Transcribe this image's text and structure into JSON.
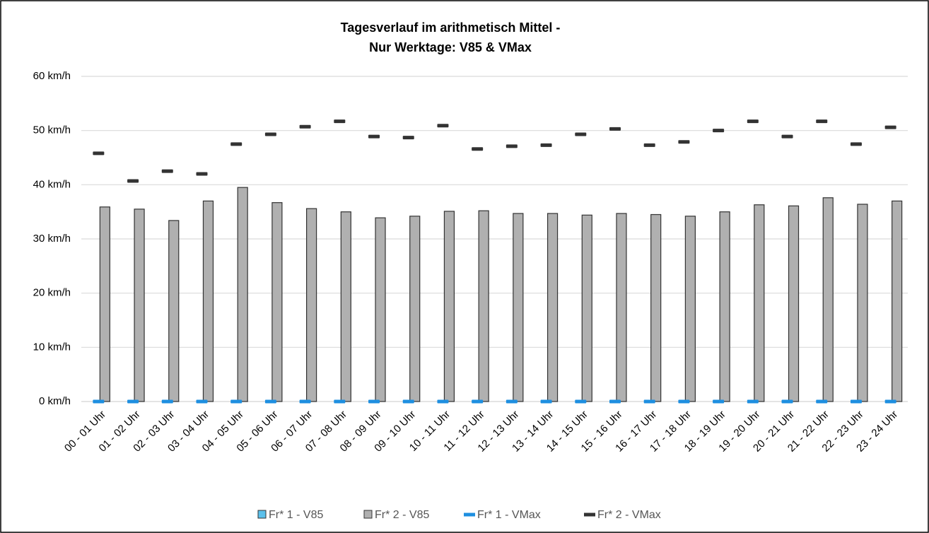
{
  "chart_data": {
    "type": "bar",
    "title": [
      "Tagesverlauf im arithmetisch Mittel -",
      "Nur Werktage: V85 & VMax"
    ],
    "categories": [
      "00 - 01 Uhr",
      "01 - 02 Uhr",
      "02 - 03 Uhr",
      "03 - 04 Uhr",
      "04 - 05 Uhr",
      "05 - 06 Uhr",
      "06 - 07 Uhr",
      "07 - 08 Uhr",
      "08 - 09 Uhr",
      "09 - 10 Uhr",
      "10 - 11 Uhr",
      "11 - 12 Uhr",
      "12 - 13 Uhr",
      "13 - 14 Uhr",
      "14 - 15 Uhr",
      "15 - 16 Uhr",
      "16 - 17 Uhr",
      "17 - 18 Uhr",
      "18 - 19 Uhr",
      "19 - 20 Uhr",
      "20 - 21 Uhr",
      "21 - 22 Uhr",
      "22 - 23 Uhr",
      "23 - 24 Uhr"
    ],
    "series": [
      {
        "name": "Fr* 1 - V85",
        "color": "#5bc0eb",
        "mark": "bar",
        "values": [
          0,
          0,
          0,
          0,
          0,
          0,
          0,
          0,
          0,
          0,
          0,
          0,
          0,
          0,
          0,
          0,
          0,
          0,
          0,
          0,
          0,
          0,
          0,
          0
        ]
      },
      {
        "name": "Fr* 2 - V85",
        "color": "#b0b0b0",
        "mark": "bar",
        "values": [
          35.9,
          35.5,
          33.4,
          37.0,
          39.5,
          36.7,
          35.6,
          35.0,
          33.9,
          34.2,
          35.1,
          35.2,
          34.7,
          34.7,
          34.4,
          34.7,
          34.5,
          34.2,
          35.0,
          36.3,
          36.1,
          37.6,
          36.4,
          37.0
        ]
      },
      {
        "name": "Fr* 1 - VMax",
        "color": "#1e8fe0",
        "mark": "dash",
        "values": [
          0,
          0,
          0,
          0,
          0,
          0,
          0,
          0,
          0,
          0,
          0,
          0,
          0,
          0,
          0,
          0,
          0,
          0,
          0,
          0,
          0,
          0,
          0,
          0
        ]
      },
      {
        "name": "Fr* 2 - VMax",
        "color": "#333333",
        "mark": "dash",
        "values": [
          45.8,
          40.7,
          42.5,
          42.0,
          47.5,
          49.3,
          50.7,
          51.7,
          48.9,
          48.7,
          50.9,
          46.6,
          47.1,
          47.3,
          49.3,
          50.3,
          47.3,
          47.9,
          50.0,
          51.7,
          48.9,
          51.7,
          47.5,
          50.6
        ]
      }
    ],
    "ylim": [
      0,
      60
    ],
    "yticks": [
      {
        "value": 0,
        "label": "0 km/h"
      },
      {
        "value": 10,
        "label": "10 km/h"
      },
      {
        "value": 20,
        "label": "20 km/h"
      },
      {
        "value": 30,
        "label": "30 km/h"
      },
      {
        "value": 40,
        "label": "40 km/h"
      },
      {
        "value": 50,
        "label": "50 km/h"
      },
      {
        "value": 60,
        "label": "60 km/h"
      }
    ],
    "grid": true
  }
}
